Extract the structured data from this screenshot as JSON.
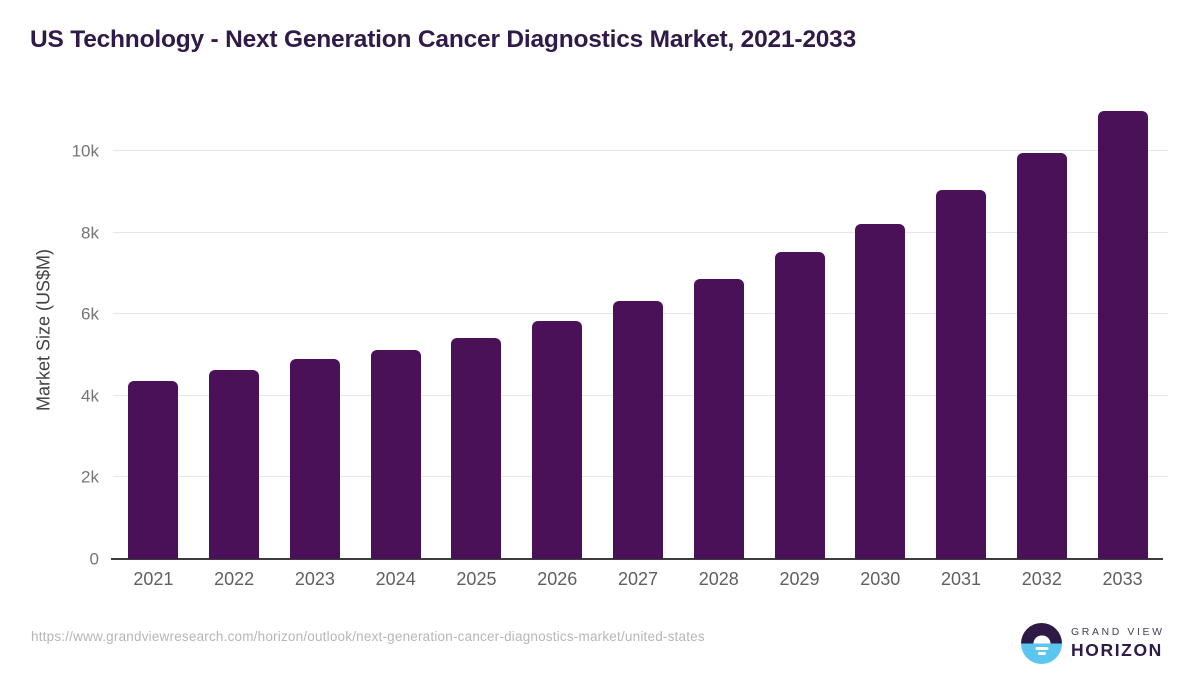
{
  "title": "US Technology - Next Generation Cancer Diagnostics Market, 2021-2033",
  "chart_data": {
    "type": "bar",
    "title": "US Technology - Next Generation Cancer Diagnostics Market, 2021-2033",
    "categories": [
      "2021",
      "2022",
      "2023",
      "2024",
      "2025",
      "2026",
      "2027",
      "2028",
      "2029",
      "2030",
      "2031",
      "2032",
      "2033"
    ],
    "values": [
      4370,
      4640,
      4895,
      5120,
      5425,
      5845,
      6330,
      6870,
      7515,
      8220,
      9040,
      9950,
      10980
    ],
    "xlabel": "",
    "ylabel": "Market Size (US$M)",
    "ylim": [
      0,
      11250
    ],
    "yticks": [
      0,
      2000,
      4000,
      6000,
      8000,
      10000
    ],
    "ytick_labels": [
      "0",
      "2k",
      "4k",
      "6k",
      "8k",
      "10k"
    ],
    "grid": true,
    "legend": "none",
    "bar_color": "#4A1158"
  },
  "footer": {
    "source_url": "https://www.grandviewresearch.com/horizon/outlook/next-generation-cancer-diagnostics-market/united-states",
    "logo": {
      "line1": "GRAND VIEW",
      "line2": "HORIZON"
    }
  },
  "colors": {
    "accent_dark": "#2F1A48",
    "bar": "#4A1158",
    "logo_dark": "#2E1A47",
    "logo_blue": "#5BC6F0",
    "gridline": "#E7E7E7",
    "axis_line": "#3D3D3D",
    "tick_text": "#757575",
    "url_text": "#B6B6B6"
  }
}
